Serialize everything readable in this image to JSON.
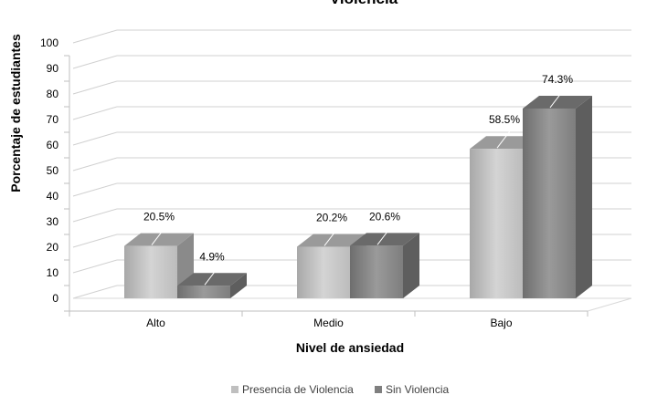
{
  "chart_data": {
    "type": "bar",
    "title": "Violencia",
    "xlabel": "Nivel de ansiedad",
    "ylabel": "Porcentaje de estudiantes",
    "categories": [
      "Alto",
      "Medio",
      "Bajo"
    ],
    "series": [
      {
        "name": "Presencia de Violencia",
        "values": [
          20.5,
          20.2,
          58.5
        ],
        "labels": [
          "20.5%",
          "20.2%",
          "58.5%"
        ],
        "color": "#bfbfbf"
      },
      {
        "name": "Sin Violencia",
        "values": [
          4.9,
          20.6,
          74.3
        ],
        "labels": [
          "4.9%",
          "20.6%",
          "74.3%"
        ],
        "color": "#7f7f7f"
      }
    ],
    "ylim": [
      0,
      100
    ],
    "yticks": [
      0,
      10,
      20,
      30,
      40,
      50,
      60,
      70,
      80,
      90,
      100
    ],
    "grid": true,
    "legend_position": "bottom",
    "style": "3d-clustered-column"
  }
}
